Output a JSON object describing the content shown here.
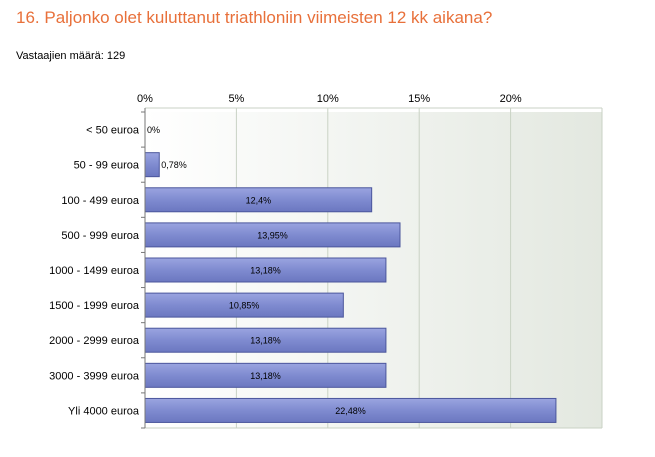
{
  "question_title": "16. Paljonko olet kuluttanut triathloniin viimeisten 12 kk aikana?",
  "respondents_label": "Vastaajien määrä: 129",
  "colors": {
    "title": "#e8703a",
    "bar_fill": "#7f8bd0",
    "bar_stroke": "#4b569c",
    "plot_bg_left": "#ffffff",
    "plot_bg_right": "#e3e8e0",
    "grid": "#c9d2c4",
    "axis": "#777777"
  },
  "chart_data": {
    "type": "bar",
    "orientation": "horizontal",
    "title": "",
    "xlabel": "",
    "ylabel": "",
    "xlim": [
      0,
      25
    ],
    "grid": true,
    "x_ticks": [
      {
        "value": 0,
        "label": "0%"
      },
      {
        "value": 5,
        "label": "5%"
      },
      {
        "value": 10,
        "label": "10%"
      },
      {
        "value": 15,
        "label": "15%"
      },
      {
        "value": 20,
        "label": "20%"
      }
    ],
    "categories": [
      "< 50 euroa",
      "50 - 99 euroa",
      "100 - 499 euroa",
      "500 - 999 euroa",
      "1000 - 1499 euroa",
      "1500 - 1999 euroa",
      "2000 - 2999 euroa",
      "3000 - 3999 euroa",
      "Yli 4000 euroa"
    ],
    "values": [
      0,
      0.78,
      12.4,
      13.95,
      13.18,
      10.85,
      13.18,
      13.18,
      22.48
    ],
    "value_labels": [
      "0%",
      "0,78%",
      "12,4%",
      "13,95%",
      "13,18%",
      "10,85%",
      "13,18%",
      "13,18%",
      "22,48%"
    ]
  }
}
